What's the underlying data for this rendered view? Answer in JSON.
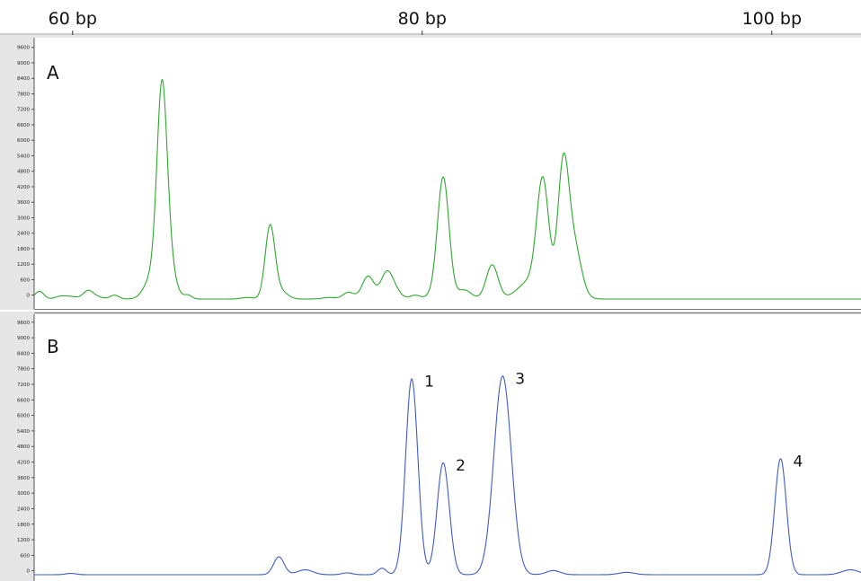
{
  "x_axis": {
    "unit": "bp",
    "range": [
      57.8,
      105.1
    ],
    "ticks": [
      {
        "value": 60,
        "label": "60 bp"
      },
      {
        "value": 80,
        "label": "80 bp"
      },
      {
        "value": 100,
        "label": "100 bp"
      }
    ]
  },
  "chart_data": [
    {
      "type": "line",
      "panel": "A",
      "title": "",
      "xlabel": "",
      "ylabel": "",
      "ylim": [
        -150,
        9800
      ],
      "y_ticks": [
        0,
        600,
        1200,
        1800,
        2400,
        3000,
        3600,
        4200,
        4800,
        5400,
        6000,
        6600,
        7200,
        7800,
        8400,
        9000,
        9600
      ],
      "y_tick_labels": [
        "0",
        "600",
        "1200",
        "1800",
        "2400",
        "3000",
        "3600",
        "4200",
        "4800",
        "5400",
        "6000",
        "6600",
        "7200",
        "7800",
        "8400",
        "9000",
        "9600"
      ],
      "grid": false,
      "color": "#2ea82e",
      "baseline": -150,
      "peaks": [
        {
          "x": 58.1,
          "height": 300,
          "width": 0.25
        },
        {
          "x": 59.3,
          "height": 100,
          "width": 0.3
        },
        {
          "x": 59.8,
          "height": 50,
          "width": 0.3
        },
        {
          "x": 60.0,
          "height": 50,
          "width": 0.3
        },
        {
          "x": 60.9,
          "height": 330,
          "width": 0.3
        },
        {
          "x": 61.5,
          "height": 60,
          "width": 0.3
        },
        {
          "x": 62.4,
          "height": 150,
          "width": 0.25
        },
        {
          "x": 64.6,
          "height": 900,
          "width": 0.45
        },
        {
          "x": 65.1,
          "height": 6550,
          "width": 0.28
        },
        {
          "x": 65.35,
          "height": 1800,
          "width": 0.35
        },
        {
          "x": 65.75,
          "height": 300,
          "width": 0.35
        },
        {
          "x": 66.6,
          "height": 150,
          "width": 0.22
        },
        {
          "x": 70.0,
          "height": 60,
          "width": 0.35
        },
        {
          "x": 71.3,
          "height": 2850,
          "width": 0.28
        },
        {
          "x": 71.9,
          "height": 250,
          "width": 0.3
        },
        {
          "x": 72.3,
          "height": 70,
          "width": 0.3
        },
        {
          "x": 74.7,
          "height": 60,
          "width": 0.4
        },
        {
          "x": 75.7,
          "height": 190,
          "width": 0.28
        },
        {
          "x": 76.0,
          "height": 100,
          "width": 0.3
        },
        {
          "x": 76.9,
          "height": 880,
          "width": 0.33
        },
        {
          "x": 78.0,
          "height": 1070,
          "width": 0.36
        },
        {
          "x": 78.6,
          "height": 150,
          "width": 0.3
        },
        {
          "x": 79.6,
          "height": 150,
          "width": 0.3
        },
        {
          "x": 80.5,
          "height": 100,
          "width": 0.3
        },
        {
          "x": 81.2,
          "height": 4720,
          "width": 0.33
        },
        {
          "x": 82.4,
          "height": 350,
          "width": 0.4
        },
        {
          "x": 84.0,
          "height": 1320,
          "width": 0.34
        },
        {
          "x": 86.2,
          "height": 700,
          "width": 0.7
        },
        {
          "x": 86.9,
          "height": 4300,
          "width": 0.34
        },
        {
          "x": 88.05,
          "height": 3840,
          "width": 0.3
        },
        {
          "x": 88.45,
          "height": 2400,
          "width": 0.48
        },
        {
          "x": 88.95,
          "height": 300,
          "width": 0.3
        }
      ]
    },
    {
      "type": "line",
      "panel": "B",
      "title": "",
      "xlabel": "",
      "ylabel": "",
      "ylim": [
        -150,
        9800
      ],
      "y_ticks": [
        0,
        600,
        1200,
        1800,
        2400,
        3000,
        3600,
        4200,
        4800,
        5400,
        6000,
        6600,
        7200,
        7800,
        8400,
        9000,
        9600
      ],
      "y_tick_labels": [
        "0",
        "600",
        "1200",
        "1800",
        "2400",
        "3000",
        "3600",
        "4200",
        "4800",
        "5400",
        "6000",
        "6600",
        "7200",
        "7800",
        "8400",
        "9000",
        "9600"
      ],
      "grid": false,
      "color": "#3f5cc4",
      "baseline": -150,
      "peaks": [
        {
          "x": 59.9,
          "height": 50,
          "width": 0.3
        },
        {
          "x": 71.8,
          "height": 690,
          "width": 0.3
        },
        {
          "x": 73.3,
          "height": 190,
          "width": 0.45
        },
        {
          "x": 75.7,
          "height": 70,
          "width": 0.3
        },
        {
          "x": 77.7,
          "height": 250,
          "width": 0.25
        },
        {
          "x": 79.4,
          "height": 7560,
          "width": 0.35
        },
        {
          "x": 81.2,
          "height": 4320,
          "width": 0.35
        },
        {
          "x": 84.6,
          "height": 7670,
          "width": 0.5
        },
        {
          "x": 87.5,
          "height": 160,
          "width": 0.4
        },
        {
          "x": 91.7,
          "height": 90,
          "width": 0.45
        },
        {
          "x": 100.5,
          "height": 4480,
          "width": 0.33
        },
        {
          "x": 104.5,
          "height": 190,
          "width": 0.5
        }
      ],
      "annotations": [
        {
          "text": "1",
          "x": 79.4,
          "y": 7560
        },
        {
          "text": "2",
          "x": 81.2,
          "y": 4320
        },
        {
          "text": "3",
          "x": 84.6,
          "y": 7670
        },
        {
          "text": "4",
          "x": 100.5,
          "y": 4480
        }
      ]
    }
  ]
}
